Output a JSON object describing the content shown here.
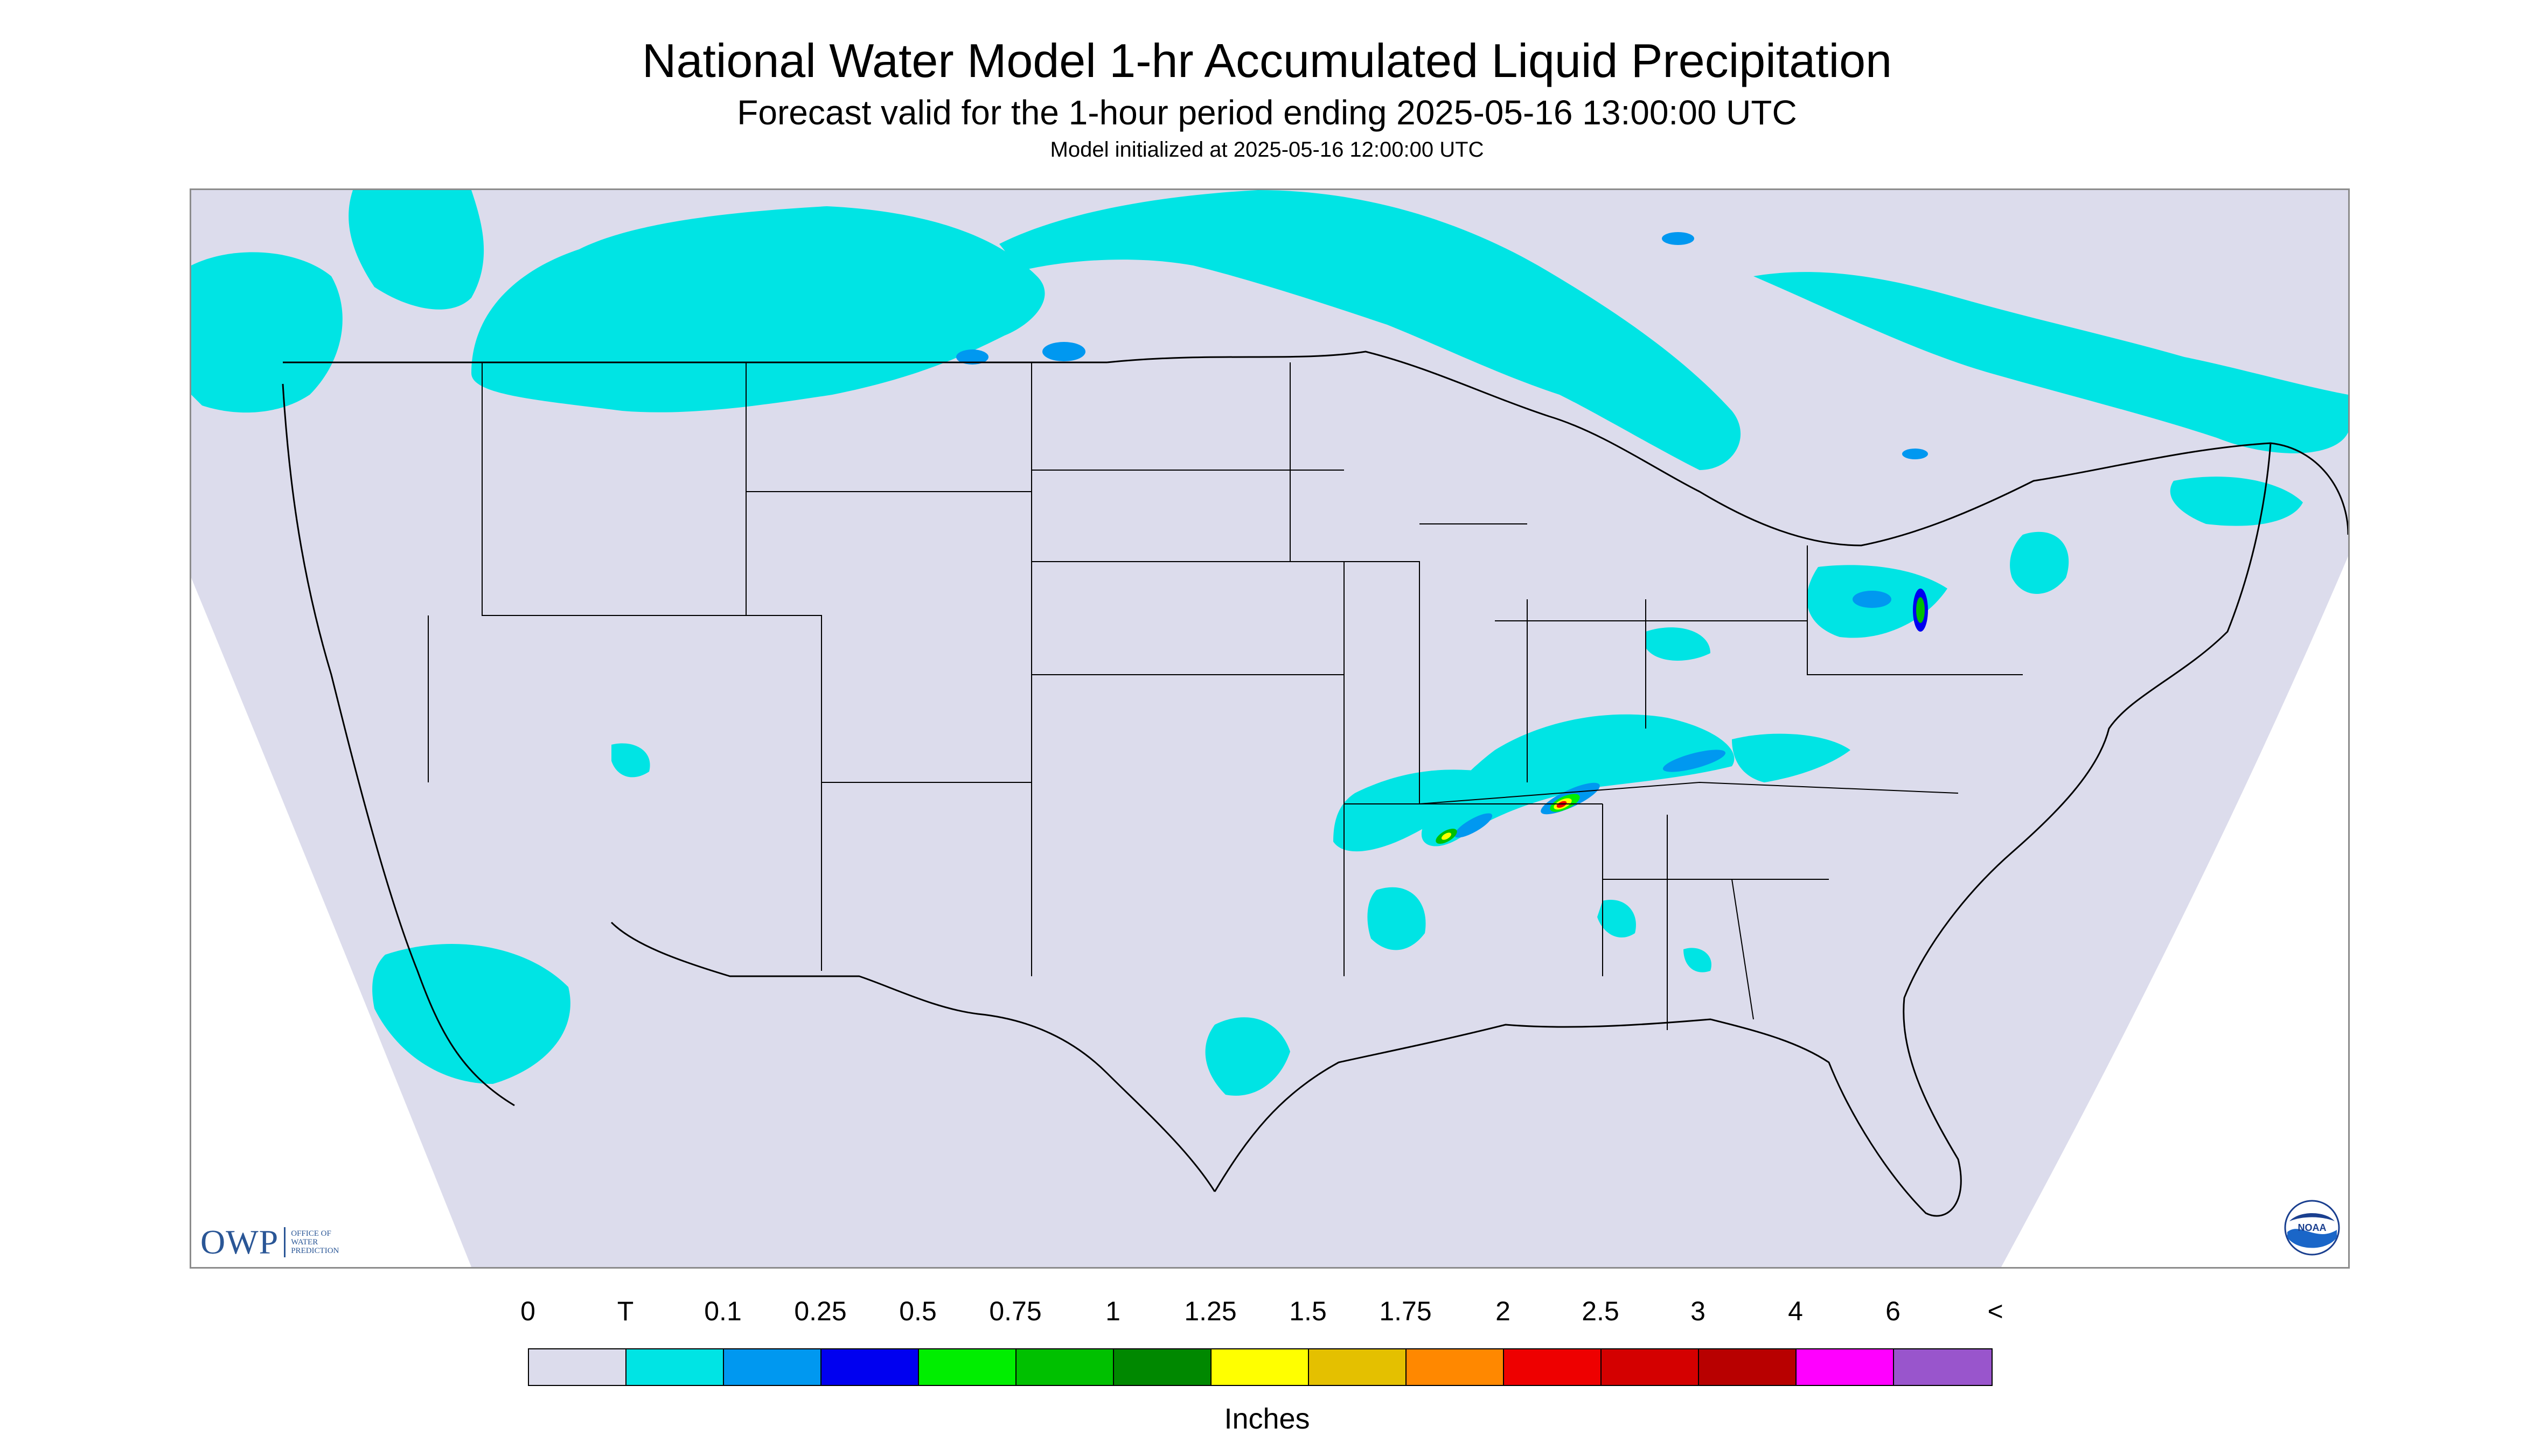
{
  "header": {
    "title": "National Water Model 1-hr Accumulated Liquid Precipitation",
    "subtitle": "Forecast valid for the 1-hour period ending 2025-05-16 13:00:00 UTC",
    "init_line": "Model initialized at 2025-05-16 12:00:00 UTC"
  },
  "logos": {
    "owp_mark": "OWP",
    "owp_sub": "OFFICE OF\nWATER\nPREDICTION",
    "noaa": "NOAA"
  },
  "colors": {
    "background": "#dcdcec",
    "trace": "#00e4e4",
    "blue": "#0098f0",
    "dark_blue": "#0000f0",
    "green": "#00ee00",
    "mid_green": "#00c000",
    "dark_green": "#008800",
    "yellow": "#ffff00",
    "orange": "#ff8800",
    "red": "#ee0000",
    "dark_red": "#c80000"
  },
  "legend": {
    "labels": [
      "0",
      "T",
      "0.1",
      "0.25",
      "0.5",
      "0.75",
      "1",
      "1.25",
      "1.5",
      "1.75",
      "2",
      "2.5",
      "3",
      "4",
      "6",
      "<"
    ],
    "colors": [
      "#dcdcec",
      "#00e4e4",
      "#0098f0",
      "#0000f0",
      "#00ee00",
      "#00c000",
      "#008800",
      "#ffff00",
      "#e4c000",
      "#ff8800",
      "#ee0000",
      "#d40000",
      "#b80000",
      "#ff00ff",
      "#9955cc"
    ],
    "units": "Inches"
  }
}
